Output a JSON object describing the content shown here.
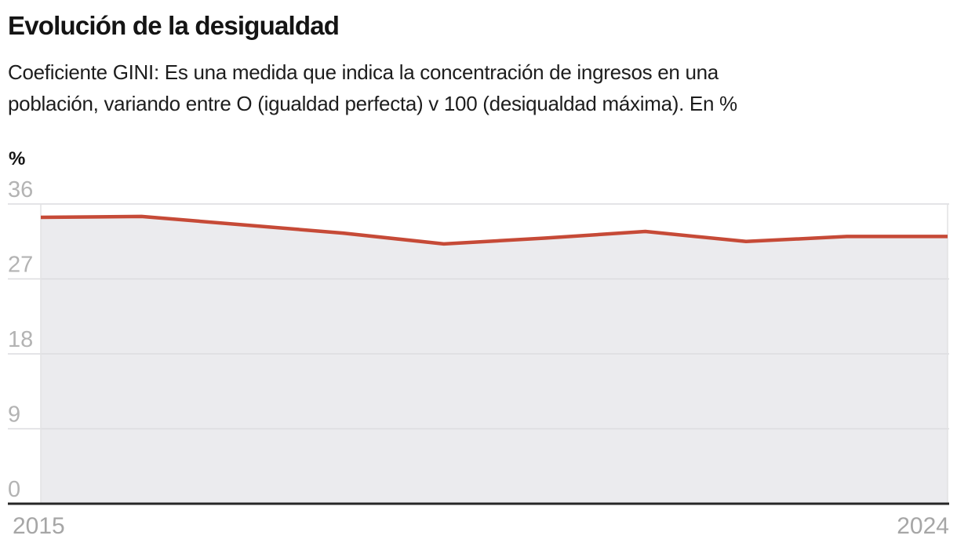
{
  "header": {
    "title": "Evolución de la desigualdad",
    "subtitle_line1": "Coeficiente GINI: Es una medida que indica la concentración de ingresos en una",
    "subtitle_line2": "población, variando entre O (igualdad perfecta) v 100 (desiqualdad máxima). En %"
  },
  "chart_data": {
    "type": "area",
    "title": "Evolución de la desigualdad",
    "subtitle": "Coeficiente GINI: Es una medida que indica la concentración de ingresos en una población, variando entre O (igualdad perfecta) v 100 (desiqualdad máxima). En %",
    "unit_label": "%",
    "x": [
      2015,
      2016,
      2017,
      2018,
      2019,
      2020,
      2021,
      2022,
      2023,
      2024
    ],
    "series": [
      {
        "name": "Coeficiente GINI",
        "values": [
          34.4,
          34.5,
          33.5,
          32.5,
          31.2,
          31.9,
          32.7,
          31.5,
          32.1,
          32.1
        ]
      }
    ],
    "ylim": [
      0,
      36
    ],
    "yticks": [
      36,
      27,
      18,
      9,
      0
    ],
    "xtick_labels": [
      "2015",
      "2024"
    ],
    "grid": true,
    "legend": "none",
    "colors": {
      "line": "#c64a37",
      "area_fill": "#ebebee",
      "gridline": "#dcdcdf",
      "tick_gridline": "#e2e2e4",
      "baseline": "#262626",
      "ytick_label": "#b3b3b3",
      "xtick_label": "#a6a6a6",
      "text": "#141414"
    }
  }
}
